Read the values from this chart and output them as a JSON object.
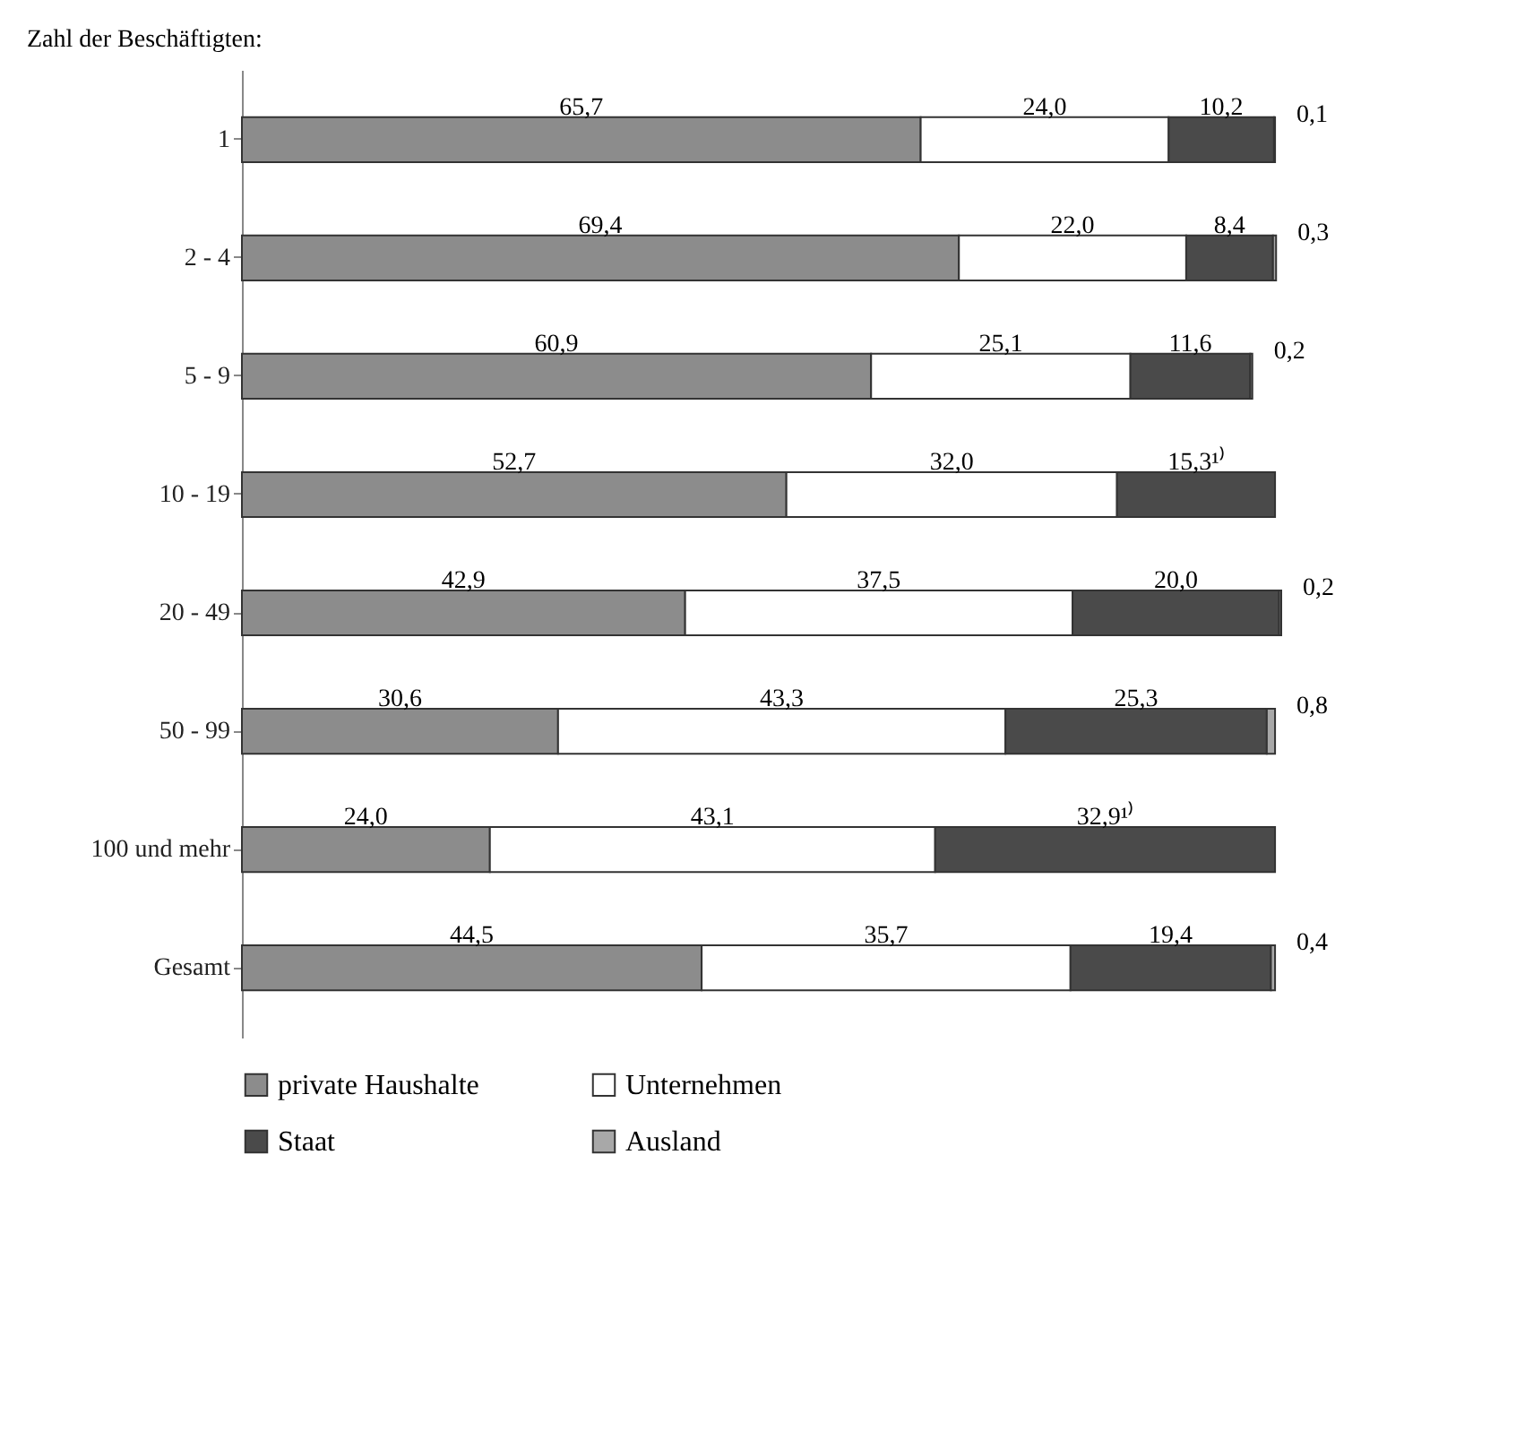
{
  "chart_data": {
    "type": "bar",
    "orientation": "horizontal",
    "stacked": true,
    "ylabel": "Zahl der Beschäftigten:",
    "legend": "bottom",
    "grid": false,
    "categories": [
      "1",
      "2 - 4",
      "5 - 9",
      "10 - 19",
      "20 - 49",
      "50 - 99",
      "100 und mehr",
      "Gesamt"
    ],
    "series": [
      {
        "name": "private Haushalte",
        "color": "#8c8c8c",
        "values": [
          65.7,
          69.4,
          60.9,
          52.7,
          42.9,
          30.6,
          24.0,
          44.5
        ],
        "value_labels": [
          "65,7",
          "69,4",
          "60,9",
          "52,7",
          "42,9",
          "30,6",
          "24,0",
          "44,5"
        ]
      },
      {
        "name": "Unternehmen",
        "color": "#ffffff",
        "values": [
          24.0,
          22.0,
          25.1,
          32.0,
          37.5,
          43.3,
          43.1,
          35.7
        ],
        "value_labels": [
          "24,0",
          "22,0",
          "25,1",
          "32,0",
          "37,5",
          "43,3",
          "43,1",
          "35,7"
        ]
      },
      {
        "name": "Staat",
        "color": "#4a4a4a",
        "values": [
          10.2,
          8.4,
          11.6,
          15.3,
          20.0,
          25.3,
          32.9,
          19.4
        ],
        "value_labels": [
          "10,2",
          "8,4",
          "11,6",
          "15,3¹⁾",
          "20,0",
          "25,3",
          "32,9¹⁾",
          "19,4"
        ]
      },
      {
        "name": "Ausland",
        "color": "#a8a8a8",
        "values": [
          0.1,
          0.3,
          0.2,
          null,
          0.2,
          0.8,
          null,
          0.4
        ],
        "value_labels": [
          "0,1",
          "0,3",
          "0,2",
          null,
          "0,2",
          "0,8",
          null,
          "0,4"
        ]
      }
    ]
  }
}
